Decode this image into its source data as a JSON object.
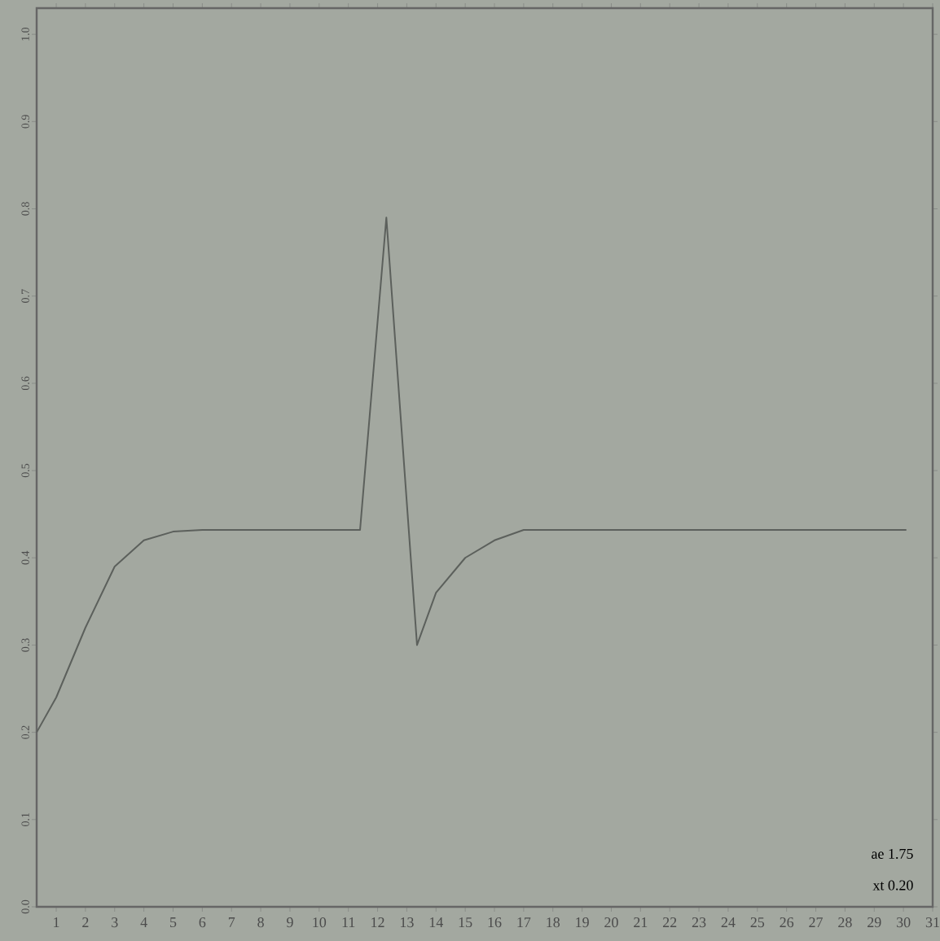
{
  "chart_data": {
    "type": "line",
    "x": [
      0.33,
      1,
      2,
      3,
      4,
      5,
      6,
      11.4,
      12.3,
      13.35,
      14,
      15,
      16,
      17,
      30.1
    ],
    "series": [
      {
        "color": "#5c605c",
        "values": [
          0.2,
          0.24,
          0.32,
          0.39,
          0.42,
          0.43,
          0.432,
          0.432,
          0.79,
          0.3,
          0.36,
          0.4,
          0.42,
          0.432,
          0.432
        ]
      }
    ],
    "xlim": [
      0.33,
      31
    ],
    "xticks": [
      1,
      2,
      3,
      4,
      5,
      6,
      7,
      8,
      9,
      10,
      11,
      12,
      13,
      14,
      15,
      16,
      17,
      18,
      19,
      20,
      21,
      22,
      23,
      24,
      25,
      26,
      27,
      28,
      29,
      30,
      31
    ],
    "ylim": [
      0,
      1.03
    ],
    "yticks": [
      {
        "value": 0,
        "label": "0.0"
      },
      {
        "value": 0.1,
        "label": "0.1"
      },
      {
        "value": 0.2,
        "label": "0.2"
      },
      {
        "value": 0.3,
        "label": "0.3"
      },
      {
        "value": 0.4,
        "label": "0.4"
      },
      {
        "value": 0.5,
        "label": "0.5"
      },
      {
        "value": 0.6,
        "label": "0.6"
      },
      {
        "value": 0.7,
        "label": "0.7"
      },
      {
        "value": 0.8,
        "label": "0.8"
      },
      {
        "value": 0.9,
        "label": "0.9"
      },
      {
        "value": 1,
        "label": "1.0"
      }
    ],
    "annotations": [
      "ae 1.75",
      "xt 0.20"
    ],
    "marker": "none",
    "line_style": "solid"
  }
}
